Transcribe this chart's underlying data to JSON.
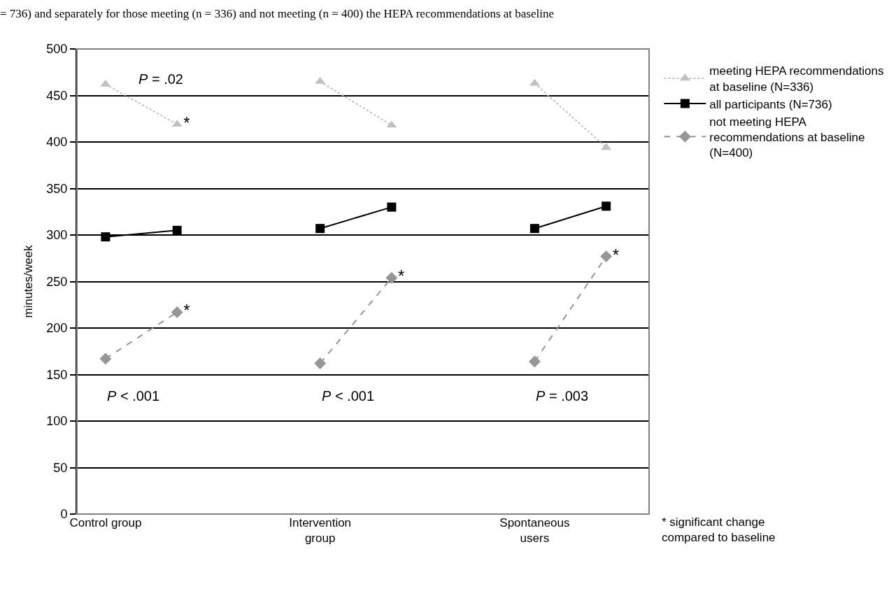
{
  "chart_data": {
    "type": "line",
    "title": "= 736) and separately for those meeting (n = 336) and not meeting (n = 400) the HEPA recommendations at baseline",
    "ylabel": "minutes/week",
    "categories": [
      "Control group",
      null,
      null,
      "Intervention group",
      null,
      null,
      "Spontaneous users",
      null
    ],
    "series": [
      {
        "name": "meeting HEPA recommendations at baseline (N=336)",
        "color": "#c0c0c0",
        "marker": "triangle",
        "line_style": "dotted",
        "values": [
          462,
          419,
          null,
          465,
          418,
          null,
          463,
          394
        ],
        "value_labels": [
          null,
          "*",
          null,
          null,
          null,
          null,
          null,
          null
        ]
      },
      {
        "name": "all participants (N=736)",
        "color": "#000000",
        "marker": "square",
        "line_style": "solid",
        "values": [
          298,
          305,
          null,
          307,
          330,
          null,
          307,
          331
        ]
      },
      {
        "name": "not meeting HEPA recommendations at baseline (N=400)",
        "color": "#969696",
        "marker": "diamond",
        "line_style": "dashed",
        "values": [
          167,
          217,
          null,
          162,
          254,
          null,
          164,
          277
        ],
        "value_labels": [
          null,
          "*",
          null,
          null,
          "*",
          null,
          null,
          "*"
        ]
      }
    ],
    "ylim": [
      0,
      500
    ],
    "yticks": [
      0,
      50,
      100,
      150,
      200,
      250,
      300,
      350,
      400,
      450,
      500
    ],
    "grid": "y",
    "legend": "right",
    "annotations": [
      "P = .02",
      "P < .001",
      "P < .001",
      "P = .003",
      "* significant change compared to baseline"
    ]
  }
}
